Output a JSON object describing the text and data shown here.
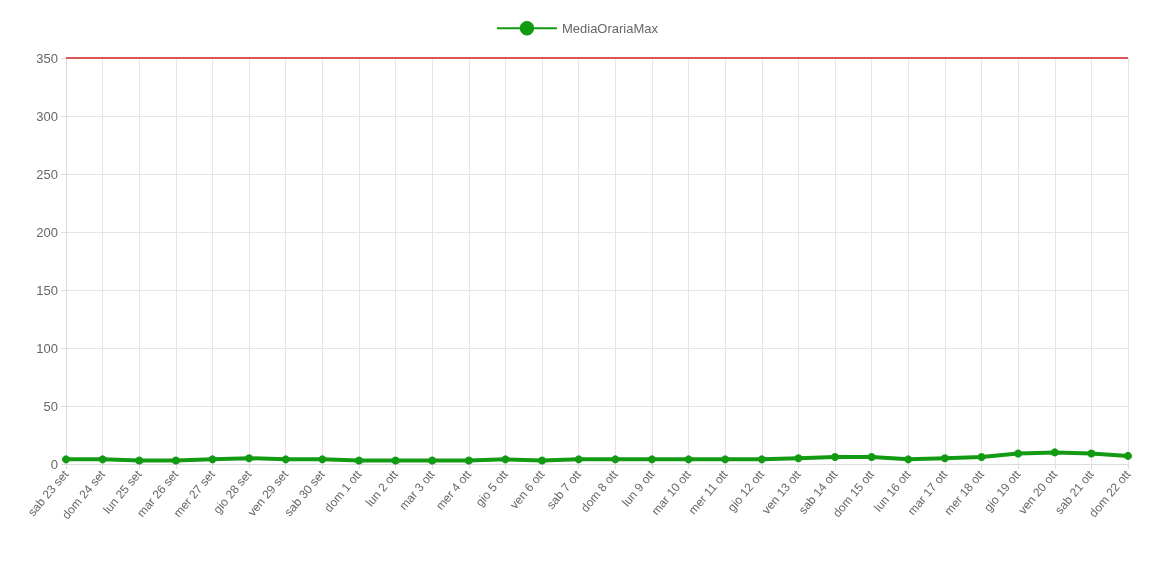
{
  "chart_data": {
    "type": "line",
    "categories": [
      "sab 23 set",
      "dom 24 set",
      "lun 25 set",
      "mar 26 set",
      "mer 27 set",
      "gio 28 set",
      "ven 29 set",
      "sab 30 set",
      "dom 1 ott",
      "lun 2 ott",
      "mar 3 ott",
      "mer 4 ott",
      "gio 5 ott",
      "ven 6 ott",
      "sab 7 ott",
      "dom 8 ott",
      "lun 9 ott",
      "mar 10 ott",
      "mer 11 ott",
      "gio 12 ott",
      "ven 13 ott",
      "sab 14 ott",
      "dom 15 ott",
      "lun 16 ott",
      "mar 17 ott",
      "mer 18 ott",
      "gio 19 ott",
      "ven 20 ott",
      "sab 21 ott",
      "dom 22 ott"
    ],
    "series": [
      {
        "name": "MediaOrariaMax",
        "color": "#129a12",
        "values": [
          4,
          4,
          3,
          3,
          4,
          5,
          4,
          4,
          3,
          3,
          3,
          3,
          4,
          3,
          4,
          4,
          4,
          4,
          4,
          4,
          5,
          6,
          6,
          4,
          5,
          6,
          9,
          10,
          9,
          7
        ]
      }
    ],
    "ylim": [
      0,
      350
    ],
    "yticks": [
      0,
      50,
      100,
      150,
      200,
      250,
      300,
      350
    ],
    "ref_lines": [
      {
        "axis": "y",
        "value": 350,
        "color": "#e05555"
      }
    ],
    "grid": true,
    "legend": "top",
    "marker": "circle",
    "line_style": "solid"
  }
}
